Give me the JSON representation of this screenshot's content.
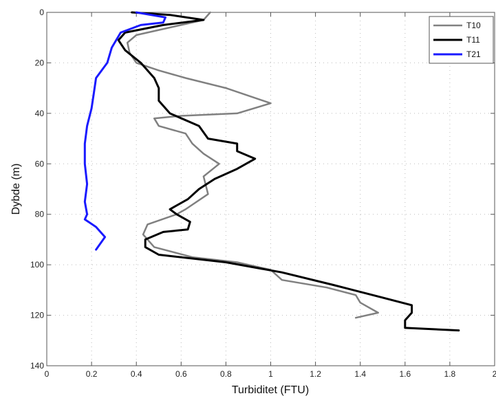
{
  "chart_data": {
    "type": "line",
    "xlabel": "Turbiditet (FTU)",
    "ylabel": "Dybde (m)",
    "xlim": [
      0,
      2
    ],
    "ylim": [
      0,
      140
    ],
    "y_reversed": true,
    "x_ticks": [
      "0",
      "0.2",
      "0.4",
      "0.6",
      "0.8",
      "1",
      "1.2",
      "1.4",
      "1.6",
      "1.8",
      "2"
    ],
    "y_ticks": [
      "0",
      "20",
      "40",
      "60",
      "80",
      "100",
      "120",
      "140"
    ],
    "grid": "dotted",
    "legend_position": "top-right",
    "series": [
      {
        "name": "T10",
        "color": "#808080",
        "points": [
          [
            0.73,
            0
          ],
          [
            0.7,
            3
          ],
          [
            0.55,
            6
          ],
          [
            0.4,
            9
          ],
          [
            0.36,
            12
          ],
          [
            0.37,
            16
          ],
          [
            0.4,
            20
          ],
          [
            0.5,
            23
          ],
          [
            0.62,
            26
          ],
          [
            0.8,
            30
          ],
          [
            1.0,
            36
          ],
          [
            0.85,
            40
          ],
          [
            0.6,
            41
          ],
          [
            0.48,
            42
          ],
          [
            0.5,
            45
          ],
          [
            0.62,
            48
          ],
          [
            0.65,
            52
          ],
          [
            0.7,
            56
          ],
          [
            0.77,
            60
          ],
          [
            0.7,
            65
          ],
          [
            0.72,
            72
          ],
          [
            0.62,
            78
          ],
          [
            0.58,
            80
          ],
          [
            0.45,
            84
          ],
          [
            0.43,
            88
          ],
          [
            0.48,
            93
          ],
          [
            0.65,
            97
          ],
          [
            0.85,
            99
          ],
          [
            1.0,
            102
          ],
          [
            1.05,
            106
          ],
          [
            1.25,
            109
          ],
          [
            1.38,
            112
          ],
          [
            1.4,
            115
          ],
          [
            1.48,
            119
          ],
          [
            1.38,
            121
          ]
        ]
      },
      {
        "name": "T11",
        "color": "#000000",
        "points": [
          [
            0.38,
            0
          ],
          [
            0.55,
            1
          ],
          [
            0.7,
            3
          ],
          [
            0.52,
            5
          ],
          [
            0.35,
            8
          ],
          [
            0.32,
            11
          ],
          [
            0.35,
            15
          ],
          [
            0.42,
            20
          ],
          [
            0.48,
            26
          ],
          [
            0.5,
            30
          ],
          [
            0.5,
            35
          ],
          [
            0.55,
            40
          ],
          [
            0.68,
            45
          ],
          [
            0.72,
            50
          ],
          [
            0.85,
            52
          ],
          [
            0.85,
            55
          ],
          [
            0.93,
            58
          ],
          [
            0.85,
            62
          ],
          [
            0.75,
            66
          ],
          [
            0.68,
            70
          ],
          [
            0.63,
            74
          ],
          [
            0.55,
            78
          ],
          [
            0.58,
            80
          ],
          [
            0.64,
            83
          ],
          [
            0.63,
            86
          ],
          [
            0.52,
            87
          ],
          [
            0.44,
            90
          ],
          [
            0.44,
            93
          ],
          [
            0.5,
            96
          ],
          [
            0.8,
            99
          ],
          [
            1.05,
            103
          ],
          [
            1.28,
            108
          ],
          [
            1.5,
            113
          ],
          [
            1.63,
            116
          ],
          [
            1.63,
            119
          ],
          [
            1.6,
            122
          ],
          [
            1.6,
            125
          ],
          [
            1.84,
            126
          ]
        ]
      },
      {
        "name": "T21",
        "color": "#1a1aff",
        "points": [
          [
            0.4,
            0
          ],
          [
            0.53,
            2
          ],
          [
            0.52,
            4
          ],
          [
            0.42,
            5
          ],
          [
            0.33,
            8
          ],
          [
            0.29,
            14
          ],
          [
            0.27,
            20
          ],
          [
            0.22,
            26
          ],
          [
            0.21,
            32
          ],
          [
            0.2,
            38
          ],
          [
            0.18,
            45
          ],
          [
            0.17,
            52
          ],
          [
            0.17,
            60
          ],
          [
            0.18,
            68
          ],
          [
            0.17,
            75
          ],
          [
            0.18,
            80
          ],
          [
            0.17,
            82
          ],
          [
            0.22,
            85
          ],
          [
            0.26,
            89
          ],
          [
            0.22,
            94
          ]
        ]
      }
    ]
  }
}
